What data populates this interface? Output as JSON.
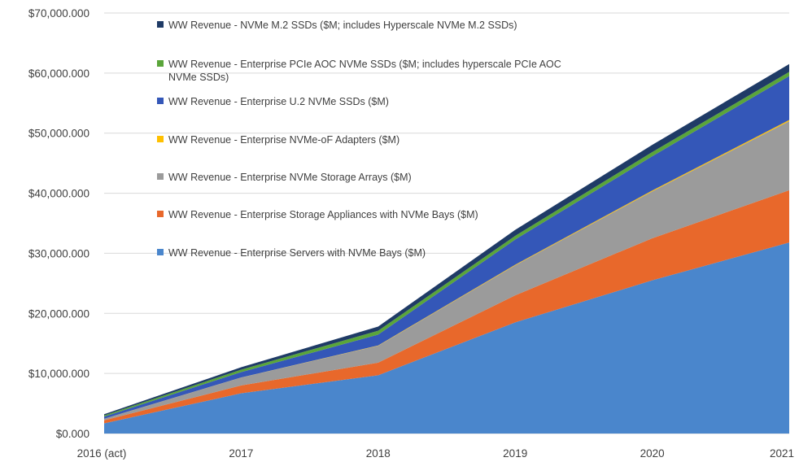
{
  "chart_data": {
    "type": "area",
    "stacked": true,
    "categories": [
      "2016 (act)",
      "2017",
      "2018",
      "2019",
      "2020",
      "2021"
    ],
    "ylim": [
      0,
      70000
    ],
    "y_ticks": [
      0,
      10000,
      20000,
      30000,
      40000,
      50000,
      60000,
      70000
    ],
    "y_tick_labels": [
      "$0.000",
      "$10,000.000",
      "$20,000.000",
      "$30,000.000",
      "$40,000.000",
      "$50,000.000",
      "$60,000.000",
      "$70,000.000"
    ],
    "grid": true,
    "legend_placement": "top-left inside plot",
    "series": [
      {
        "name": "WW Revenue - Enterprise Servers with NVMe Bays ($M)",
        "color": "#4a86cc",
        "values": [
          1700,
          6700,
          9700,
          18500,
          25500,
          31800
        ]
      },
      {
        "name": "WW Revenue - Enterprise Storage Appliances with NVMe Bays ($M)",
        "color": "#e8682b",
        "values": [
          500,
          1300,
          2100,
          4500,
          7000,
          8700
        ]
      },
      {
        "name": "WW Revenue - Enterprise NVMe Storage Arrays ($M)",
        "color": "#9b9b9b",
        "values": [
          250,
          1300,
          2800,
          5000,
          7800,
          11500
        ]
      },
      {
        "name": "WW Revenue - Enterprise NVMe-oF Adapters ($M)",
        "color": "#ffc000",
        "values": [
          10,
          30,
          60,
          100,
          150,
          200
        ]
      },
      {
        "name": "WW Revenue - Enterprise U.2 NVMe SSDs ($M)",
        "color": "#3457b8",
        "values": [
          350,
          900,
          1800,
          4200,
          5700,
          7300
        ]
      },
      {
        "name": "WW Revenue - Enterprise PCIe AOC NVMe SSDs ($M; includes hyperscale PCIe AOC NVMe SSDs)",
        "color": "#5aa53a",
        "values": [
          200,
          400,
          650,
          600,
          700,
          700
        ]
      },
      {
        "name": "WW Revenue - NVMe M.2 SSDs ($M; includes Hyperscale NVMe M.2 SSDs)",
        "color": "#1f3b66",
        "values": [
          200,
          400,
          700,
          1000,
          1200,
          1300
        ]
      }
    ],
    "legend_order": [
      6,
      5,
      4,
      3,
      2,
      1,
      0
    ]
  }
}
